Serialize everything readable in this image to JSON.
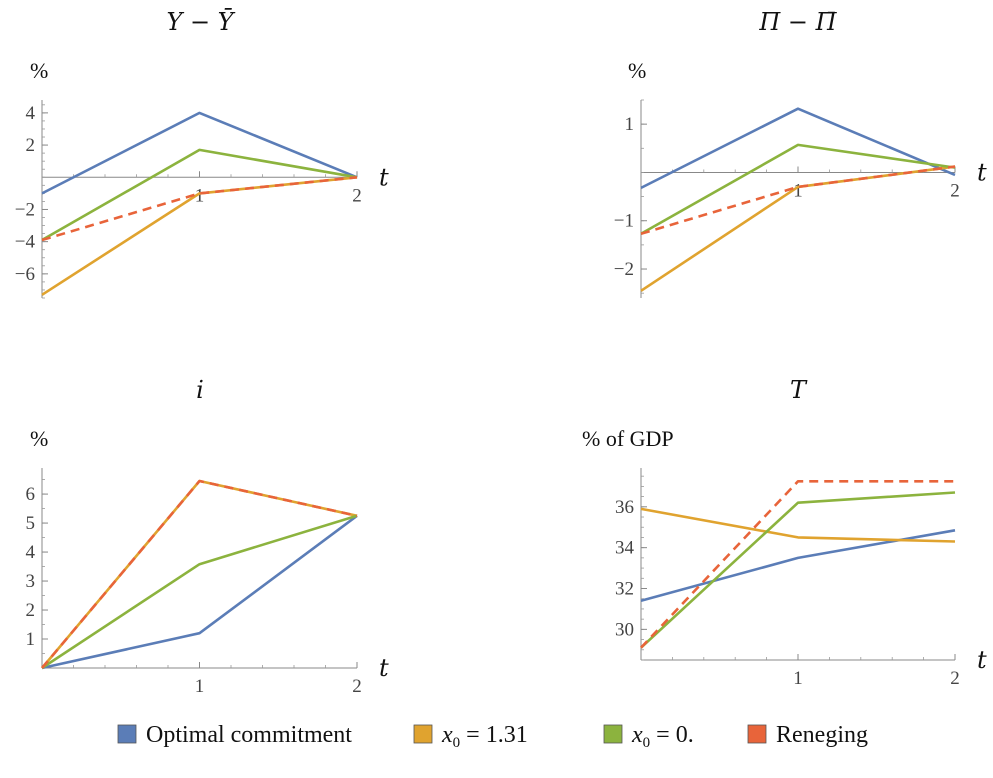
{
  "legend": [
    {
      "label": "Optimal commitment",
      "color": "#5b7db7"
    },
    {
      "label": "x",
      "sub": "0",
      "rest": " = 1.31",
      "color": "#e0a32f"
    },
    {
      "label": "x",
      "sub": "0",
      "rest": " = 0.",
      "color": "#8cb33e"
    },
    {
      "label": "Reneging",
      "color": "#e8643a"
    }
  ],
  "chart_data": [
    {
      "type": "line",
      "title": "Y − Ȳ",
      "ylabel": "%",
      "xlabel": "t",
      "x": [
        0,
        1,
        2
      ],
      "xticks": [
        "1",
        "2"
      ],
      "ylim": [
        -7.5,
        4.8
      ],
      "yticks": [
        4,
        2,
        -2,
        -4,
        -6
      ],
      "yticklabels": [
        "4",
        "2",
        "−2",
        "−4",
        "−6"
      ],
      "series": [
        {
          "name": "Optimal commitment",
          "values": [
            -1.0,
            4.0,
            0.0
          ]
        },
        {
          "name": "x0 = 1.31",
          "values": [
            -7.3,
            -1.0,
            0.0
          ]
        },
        {
          "name": "x0 = 0.",
          "values": [
            -3.9,
            1.7,
            0.0
          ]
        },
        {
          "name": "Reneging",
          "values": [
            -3.9,
            -1.0,
            0.0
          ],
          "dashed": true
        }
      ]
    },
    {
      "type": "line",
      "title": "Π − Π̄",
      "ylabel": "%",
      "xlabel": "t",
      "x": [
        0,
        1,
        2
      ],
      "xticks": [
        "1",
        "2"
      ],
      "ylim": [
        -2.6,
        1.5
      ],
      "yticks": [
        1,
        -1,
        -2
      ],
      "yticklabels": [
        "1",
        "−1",
        "−2"
      ],
      "series": [
        {
          "name": "Optimal commitment",
          "values": [
            -0.32,
            1.32,
            -0.05
          ]
        },
        {
          "name": "x0 = 1.31",
          "values": [
            -2.45,
            -0.3,
            0.12
          ]
        },
        {
          "name": "x0 = 0.",
          "values": [
            -1.27,
            0.57,
            0.1
          ]
        },
        {
          "name": "Reneging",
          "values": [
            -1.27,
            -0.3,
            0.12
          ],
          "dashed": true
        }
      ]
    },
    {
      "type": "line",
      "title": "i",
      "ylabel": "%",
      "xlabel": "t",
      "x": [
        0,
        1,
        2
      ],
      "xticks": [
        "1",
        "2"
      ],
      "ylim": [
        0,
        6.9
      ],
      "yticks": [
        1,
        2,
        3,
        4,
        5,
        6
      ],
      "yticklabels": [
        "1",
        "2",
        "3",
        "4",
        "5",
        "6"
      ],
      "series": [
        {
          "name": "Optimal commitment",
          "values": [
            0.0,
            1.2,
            5.25
          ]
        },
        {
          "name": "x0 = 1.31",
          "values": [
            0.0,
            6.45,
            5.25
          ]
        },
        {
          "name": "x0 = 0.",
          "values": [
            0.0,
            3.58,
            5.25
          ]
        },
        {
          "name": "Reneging",
          "values": [
            0.0,
            6.45,
            5.25
          ],
          "dashed": true
        }
      ]
    },
    {
      "type": "line",
      "title": "T",
      "ylabel": "% of GDP",
      "xlabel": "t",
      "x": [
        0,
        1,
        2
      ],
      "xticks": [
        "1",
        "2"
      ],
      "ylim": [
        28.5,
        37.9
      ],
      "yticks": [
        30,
        32,
        34,
        36
      ],
      "yticklabels": [
        "30",
        "32",
        "34",
        "36"
      ],
      "series": [
        {
          "name": "Optimal commitment",
          "values": [
            31.4,
            33.5,
            34.85
          ]
        },
        {
          "name": "x0 = 1.31",
          "values": [
            35.9,
            34.5,
            34.3
          ]
        },
        {
          "name": "x0 = 0.",
          "values": [
            29.1,
            36.2,
            36.7
          ]
        },
        {
          "name": "Reneging",
          "values": [
            29.1,
            37.25,
            37.25
          ],
          "dashed": true
        }
      ]
    }
  ]
}
